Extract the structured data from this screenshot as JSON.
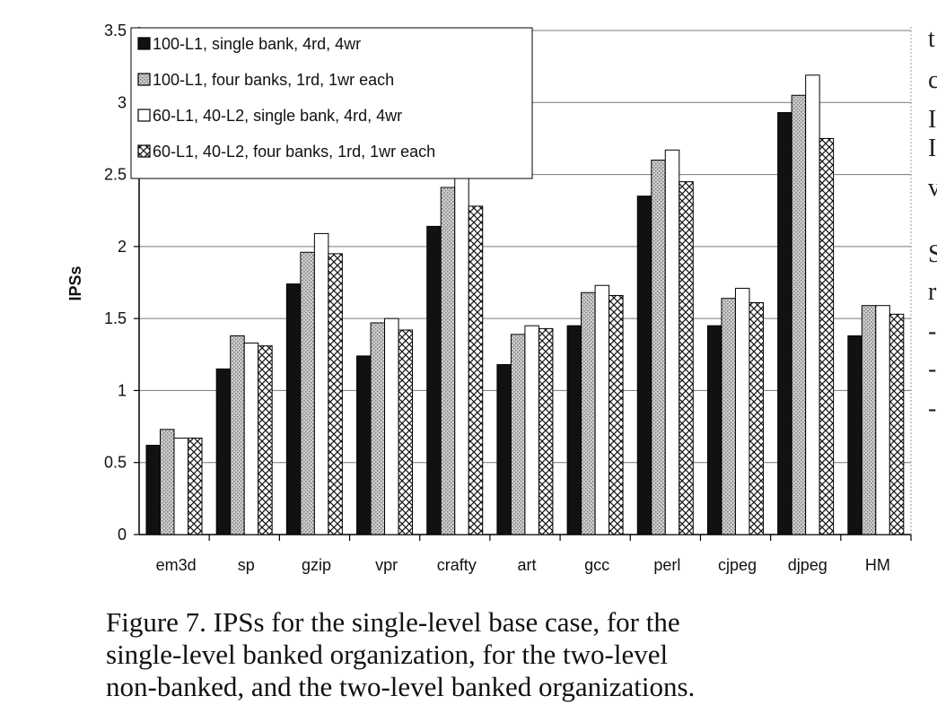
{
  "chart_data": {
    "type": "bar",
    "ylabel": "IPSs",
    "xlabel": "",
    "ylim": [
      0,
      3.5
    ],
    "yticks": [
      "0",
      "0.5",
      "1",
      "1.5",
      "2",
      "2.5",
      "3",
      "3.5"
    ],
    "categories": [
      "em3d",
      "sp",
      "gzip",
      "vpr",
      "crafty",
      "art",
      "gcc",
      "perl",
      "cjpeg",
      "djpeg",
      "HM"
    ],
    "series": [
      {
        "name": "100-L1, single bank, 4rd, 4wr",
        "fill": "solid-black",
        "values": [
          0.62,
          1.15,
          1.74,
          1.24,
          2.14,
          1.18,
          1.45,
          2.35,
          1.45,
          2.93,
          1.38
        ]
      },
      {
        "name": "100-L1, four banks, 1rd, 1wr each",
        "fill": "dotted-gray",
        "values": [
          0.73,
          1.38,
          1.96,
          1.47,
          2.41,
          1.39,
          1.68,
          2.6,
          1.64,
          3.05,
          1.59
        ]
      },
      {
        "name": "60-L1, 40-L2, single bank, 4rd, 4wr",
        "fill": "white",
        "values": [
          0.67,
          1.33,
          2.09,
          1.5,
          2.48,
          1.45,
          1.73,
          2.67,
          1.71,
          3.19,
          1.59
        ]
      },
      {
        "name": "60-L1, 40-L2, four banks, 1rd, 1wr each",
        "fill": "crosshatch",
        "values": [
          0.67,
          1.31,
          1.95,
          1.42,
          2.28,
          1.43,
          1.66,
          2.45,
          1.61,
          2.75,
          1.53
        ]
      }
    ],
    "legend_position": "top-left",
    "grid": "horizontal"
  },
  "caption": {
    "lines": [
      "Figure 7. IPSs for the single-level base case, for the",
      "single-level banked organization, for the two-level",
      "non-banked, and the two-level banked organizations."
    ]
  },
  "side_text_fragments": [
    "t",
    "c",
    "I",
    "I",
    "v",
    "S",
    "r",
    "-",
    "-",
    "-"
  ],
  "colors": {
    "bar_black": "#111111",
    "dot_gray": "#bdbdbd",
    "grid": "#777777",
    "axis": "#000000"
  }
}
